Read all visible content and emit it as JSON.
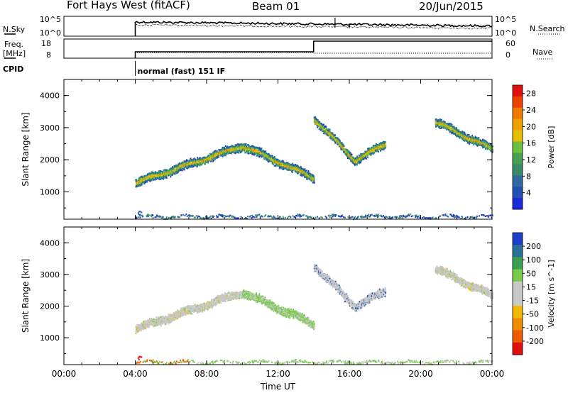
{
  "header": {
    "title": "Fort Hays West (fitACF)",
    "beam": "Beam 01",
    "date": "20/Jun/2015"
  },
  "top_panels": {
    "nsky_label": "N.Sky",
    "nsearch_label": "N.Search",
    "freq_label_1": "Freq.",
    "freq_label_2": "[MHz]",
    "nave_label": "Nave",
    "cpid_label": "CPID",
    "cpid_value": "normal (fast) 151 IF",
    "noise_ticks": [
      "10^5",
      "10^0"
    ],
    "freq_ticks": [
      "18",
      "8"
    ],
    "nave_ticks": [
      "60",
      "0"
    ]
  },
  "colors": {
    "power_scale": [
      "#1a2adc",
      "#2050b0",
      "#2e6aa0",
      "#3a8a6a",
      "#4aa055",
      "#6cc040",
      "#e6c000",
      "#f0a000",
      "#f07a00",
      "#ee4000",
      "#e01010"
    ],
    "velocity_scale": [
      "#e01010",
      "#ee5a00",
      "#f08c00",
      "#f0b800",
      "#c8c8c8",
      "#c8c8c8",
      "#78cc4a",
      "#3aa050",
      "#2a6e9a",
      "#1a3fc8"
    ]
  },
  "chart_data": [
    {
      "type": "heatmap",
      "name": "power",
      "x_axis": {
        "range_hours": [
          0,
          24
        ],
        "tick_labels": [
          "00:00",
          "04:00",
          "08:00",
          "12:00",
          "16:00",
          "20:00",
          "00:00"
        ],
        "label": "Time UT"
      },
      "y_axis": {
        "label": "Slant Range [km]",
        "ticks": [
          1000,
          2000,
          3000,
          4000
        ],
        "range": [
          150,
          4500
        ]
      },
      "colorbar": {
        "label": "Power [dB]",
        "ticks": [
          "4",
          "8",
          "12",
          "16",
          "20",
          "24",
          "28"
        ],
        "range": [
          0,
          30
        ]
      },
      "scatter_tracks": [
        {
          "t_start": 4.0,
          "t_end": 10.0,
          "r_start": 1300,
          "r_end": 2450
        },
        {
          "t_start": 10.0,
          "t_end": 14.0,
          "r_start": 2450,
          "r_end": 1450
        },
        {
          "t_start": 14.0,
          "t_end": 16.3,
          "r_start": 3300,
          "r_end": 2000
        },
        {
          "t_start": 16.3,
          "t_end": 18.0,
          "r_start": 2000,
          "r_end": 2500
        },
        {
          "t_start": 20.8,
          "t_end": 24.0,
          "r_start": 3200,
          "r_end": 2350
        },
        {
          "t_start": 4.0,
          "t_end": 24.0,
          "r_start": 250,
          "r_end": 250
        }
      ]
    },
    {
      "type": "heatmap",
      "name": "velocity",
      "x_axis": {
        "range_hours": [
          0,
          24
        ],
        "tick_labels": [
          "00:00",
          "04:00",
          "08:00",
          "12:00",
          "16:00",
          "20:00",
          "00:00"
        ],
        "label": "Time UT"
      },
      "y_axis": {
        "label": "Slant Range [km]",
        "ticks": [
          1000,
          2000,
          3000,
          4000
        ],
        "range": [
          150,
          4500
        ]
      },
      "colorbar": {
        "label": "Velocity [m s^-1]",
        "ticks": [
          "200",
          "100",
          "50",
          "15",
          "-15",
          "-50",
          "-100",
          "-200"
        ],
        "range": [
          -250,
          250
        ]
      },
      "scatter_tracks": [
        {
          "t_start": 4.0,
          "t_end": 10.0,
          "r_start": 1300,
          "r_end": 2450
        },
        {
          "t_start": 10.0,
          "t_end": 14.0,
          "r_start": 2450,
          "r_end": 1450
        },
        {
          "t_start": 14.0,
          "t_end": 16.3,
          "r_start": 3300,
          "r_end": 2000
        },
        {
          "t_start": 16.3,
          "t_end": 18.0,
          "r_start": 2000,
          "r_end": 2500
        },
        {
          "t_start": 20.8,
          "t_end": 24.0,
          "r_start": 3200,
          "r_end": 2350
        },
        {
          "t_start": 4.0,
          "t_end": 24.0,
          "r_start": 250,
          "r_end": 250
        }
      ]
    }
  ]
}
